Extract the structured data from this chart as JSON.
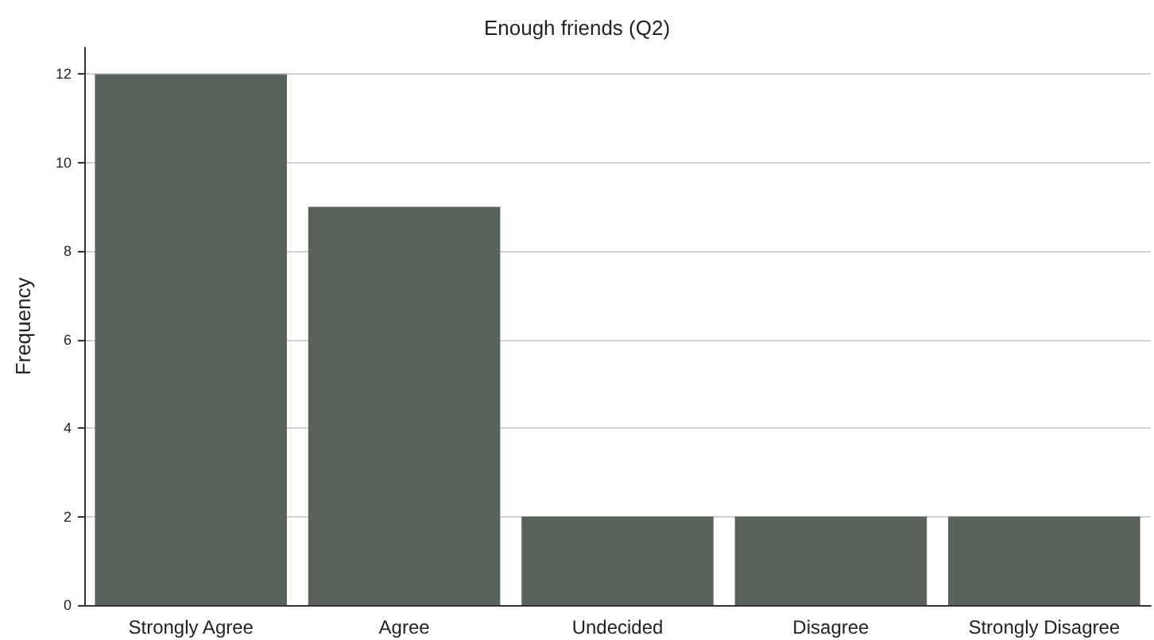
{
  "chart_data": {
    "type": "bar",
    "title": "Enough friends (Q2)",
    "ylabel": "Frequency",
    "categories": [
      "Strongly Agree",
      "Agree",
      "Undecided",
      "Disagree",
      "Strongly Disagree"
    ],
    "values": [
      12,
      9,
      2,
      2,
      2
    ],
    "color": "#59625b",
    "ylim": [
      0,
      12.6
    ],
    "yticks": [
      0,
      2,
      4,
      6,
      8,
      10,
      12
    ],
    "grid": "y"
  }
}
